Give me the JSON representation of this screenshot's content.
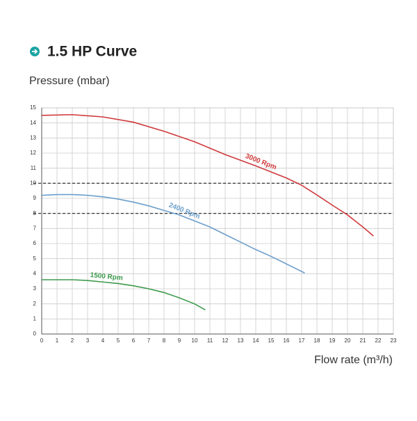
{
  "chart_data": {
    "type": "line",
    "title": "1.5 HP Curve",
    "ylabel": "Pressure (mbar)",
    "xlabel": "Flow rate (m³/h)",
    "xlim": [
      0,
      23
    ],
    "ylim": [
      0,
      15
    ],
    "xticks": [
      0,
      1,
      2,
      3,
      4,
      5,
      6,
      7,
      8,
      9,
      10,
      11,
      12,
      13,
      14,
      15,
      16,
      17,
      18,
      19,
      20,
      21,
      22,
      23
    ],
    "yticks": [
      0,
      1,
      2,
      3,
      4,
      5,
      6,
      7,
      8,
      9,
      10,
      11,
      12,
      13,
      14,
      15
    ],
    "grid": true,
    "reference_lines": [
      10,
      8
    ],
    "series": [
      {
        "name": "3000 Rpm",
        "color": "#d0393b",
        "x": [
          0,
          2,
          4,
          6,
          8,
          10,
          12,
          14,
          16,
          17,
          18,
          19,
          20,
          21,
          21.7
        ],
        "values": [
          14.5,
          14.55,
          14.4,
          14.05,
          13.45,
          12.75,
          11.9,
          11.15,
          10.35,
          9.87,
          9.22,
          8.55,
          7.9,
          7.1,
          6.5
        ]
      },
      {
        "name": "2400 Rpm",
        "color": "#6c9fcc",
        "x": [
          0,
          1,
          2,
          3,
          4,
          5,
          6,
          7,
          8,
          9,
          10,
          11,
          12,
          13,
          14,
          15,
          16,
          17.2
        ],
        "values": [
          9.2,
          9.25,
          9.25,
          9.2,
          9.1,
          8.95,
          8.75,
          8.5,
          8.2,
          7.9,
          7.5,
          7.1,
          6.6,
          6.1,
          5.6,
          5.15,
          4.65,
          4.05
        ]
      },
      {
        "name": "1500 Rpm",
        "color": "#3d9a4c",
        "x": [
          0,
          1,
          2,
          3,
          4,
          5,
          6,
          7,
          8,
          9,
          10,
          10.7
        ],
        "values": [
          3.6,
          3.6,
          3.6,
          3.55,
          3.45,
          3.35,
          3.2,
          3.0,
          2.75,
          2.4,
          2.0,
          1.6
        ]
      }
    ]
  }
}
